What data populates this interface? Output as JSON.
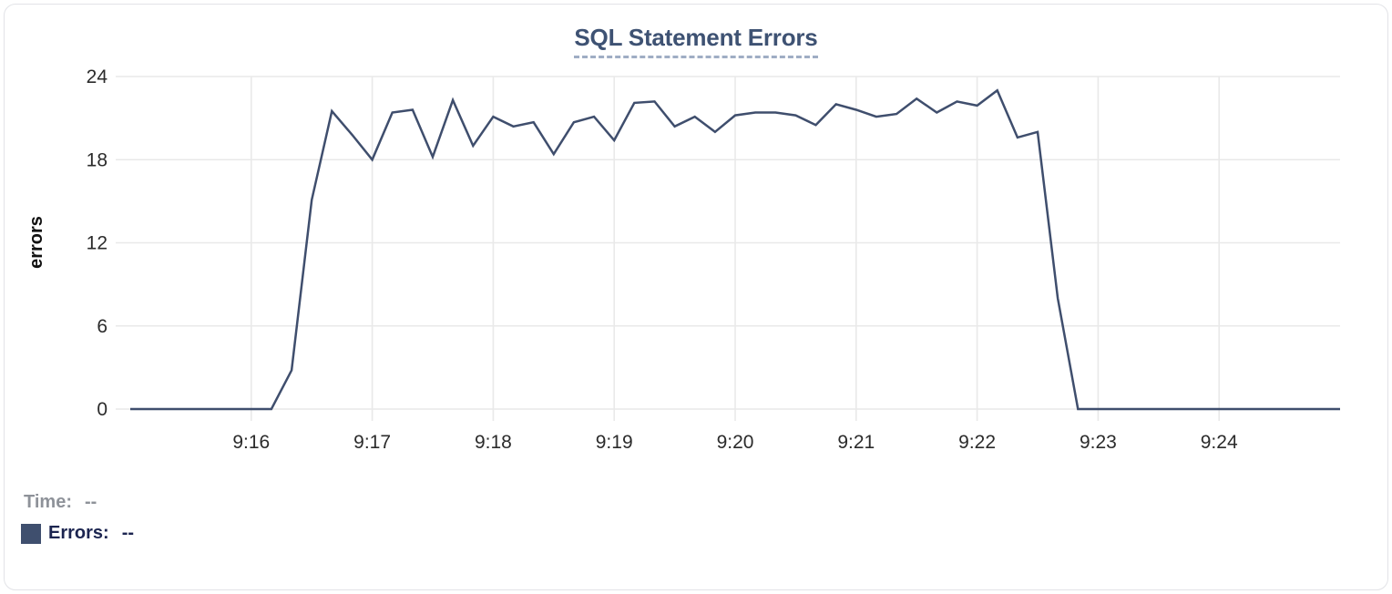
{
  "colors": {
    "accent_line": "#3f4e6d",
    "legend_swatch": "#3f4f6e",
    "title_text": "#3e5273",
    "title_underline": "#9fadc4",
    "legend_time_text": "#8e9299",
    "legend_errors_text": "#1c2550",
    "grid_line": "#e9e9e9",
    "axis_tick_text": "#2b2b2b",
    "axis_title_text": "#111111",
    "card_border": "#e2e3e7"
  },
  "tooltip_readout": {
    "time_label": "Time:",
    "time_value": "--",
    "errors_label": "Errors:",
    "errors_value": "--"
  },
  "chart_data": {
    "type": "line",
    "title": "SQL Statement Errors",
    "xlabel": "",
    "ylabel": "errors",
    "ylim": [
      0,
      24
    ],
    "y_ticks": [
      0,
      6,
      12,
      18,
      24
    ],
    "x_ticks": [
      "9:16",
      "9:17",
      "9:18",
      "9:19",
      "9:20",
      "9:21",
      "9:22",
      "9:23",
      "9:24"
    ],
    "x_range": [
      "9:15:00",
      "9:25:00"
    ],
    "grid": true,
    "legend_position": "below-left",
    "series": [
      {
        "name": "Errors",
        "color": "#3f4e6d",
        "points": [
          [
            "9:15:00",
            0
          ],
          [
            "9:15:10",
            0
          ],
          [
            "9:15:20",
            0
          ],
          [
            "9:15:30",
            0
          ],
          [
            "9:15:40",
            0
          ],
          [
            "9:15:50",
            0
          ],
          [
            "9:16:00",
            0
          ],
          [
            "9:16:10",
            0
          ],
          [
            "9:16:20",
            2.8
          ],
          [
            "9:16:30",
            15.1
          ],
          [
            "9:16:40",
            21.5
          ],
          [
            "9:16:50",
            19.8
          ],
          [
            "9:17:00",
            18
          ],
          [
            "9:17:10",
            21.4
          ],
          [
            "9:17:20",
            21.6
          ],
          [
            "9:17:30",
            18.2
          ],
          [
            "9:17:40",
            22.3
          ],
          [
            "9:17:50",
            19
          ],
          [
            "9:18:00",
            21.1
          ],
          [
            "9:18:10",
            20.4
          ],
          [
            "9:18:20",
            20.7
          ],
          [
            "9:18:30",
            18.4
          ],
          [
            "9:18:40",
            20.7
          ],
          [
            "9:18:50",
            21.1
          ],
          [
            "9:19:00",
            19.4
          ],
          [
            "9:19:10",
            22.1
          ],
          [
            "9:19:20",
            22.2
          ],
          [
            "9:19:30",
            20.4
          ],
          [
            "9:19:40",
            21.1
          ],
          [
            "9:19:50",
            20
          ],
          [
            "9:20:00",
            21.2
          ],
          [
            "9:20:10",
            21.4
          ],
          [
            "9:20:20",
            21.4
          ],
          [
            "9:20:30",
            21.2
          ],
          [
            "9:20:40",
            20.5
          ],
          [
            "9:20:50",
            22
          ],
          [
            "9:21:00",
            21.6
          ],
          [
            "9:21:10",
            21.1
          ],
          [
            "9:21:20",
            21.3
          ],
          [
            "9:21:30",
            22.4
          ],
          [
            "9:21:40",
            21.4
          ],
          [
            "9:21:50",
            22.2
          ],
          [
            "9:22:00",
            21.9
          ],
          [
            "9:22:10",
            23
          ],
          [
            "9:22:20",
            19.6
          ],
          [
            "9:22:30",
            20
          ],
          [
            "9:22:40",
            8
          ],
          [
            "9:22:50",
            0
          ],
          [
            "9:23:00",
            0
          ],
          [
            "9:23:10",
            0
          ],
          [
            "9:23:20",
            0
          ],
          [
            "9:23:30",
            0
          ],
          [
            "9:23:40",
            0
          ],
          [
            "9:23:50",
            0
          ],
          [
            "9:24:00",
            0
          ],
          [
            "9:24:10",
            0
          ],
          [
            "9:24:20",
            0
          ],
          [
            "9:24:30",
            0
          ],
          [
            "9:24:40",
            0
          ],
          [
            "9:24:50",
            0
          ],
          [
            "9:25:00",
            0
          ]
        ]
      }
    ]
  }
}
